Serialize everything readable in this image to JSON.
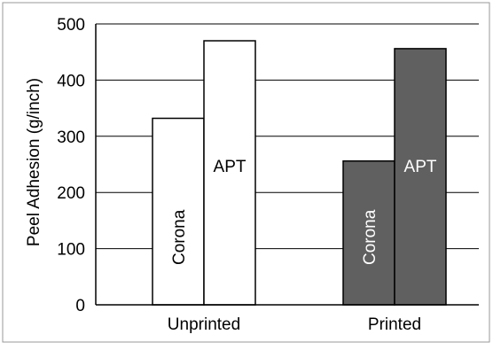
{
  "chart_data": {
    "type": "bar",
    "categories": [
      "Unprinted",
      "Printed"
    ],
    "series": [
      {
        "label": "Corona",
        "values": [
          332,
          256
        ]
      },
      {
        "label": "APT",
        "values": [
          470,
          456
        ]
      }
    ],
    "ylabel": "Peel Adhesion  (g/inch)",
    "ylim": [
      0,
      500
    ],
    "yticks": [
      0,
      100,
      200,
      300,
      400,
      500
    ],
    "grid": true,
    "colors": {
      "Unprinted": "#ffffff",
      "Printed": "#606060",
      "label_on_light": "#000000",
      "label_on_dark": "#ffffff"
    }
  }
}
